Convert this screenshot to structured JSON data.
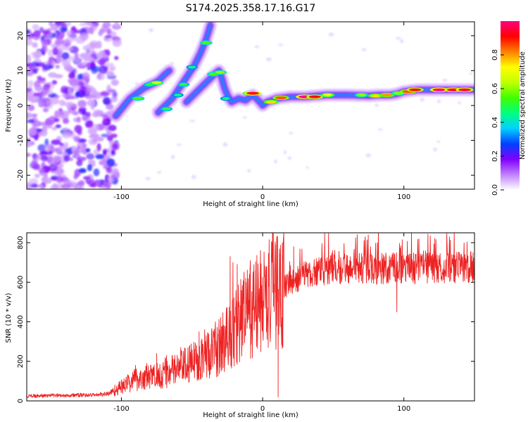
{
  "chart_data": [
    {
      "type": "heatmap",
      "title": "S174.2025.358.17.16.G17",
      "xlabel": "Height of straight line (km)",
      "ylabel": "Frequency (Hz)",
      "xlim": [
        -167,
        150
      ],
      "ylim": [
        -24,
        24
      ],
      "xticks": [
        -100,
        0,
        100
      ],
      "yticks": [
        -20,
        -10,
        0,
        10,
        20
      ],
      "colorbar": {
        "label": "Normalized spectral amplitude",
        "range": [
          0,
          1
        ],
        "ticks": [
          0.0,
          0.2,
          0.4,
          0.6,
          0.8
        ],
        "tick_labels": [
          "0.0",
          "0.2",
          "0.4",
          "0.6",
          "0.8"
        ],
        "colors": [
          "#ffffff",
          "#c080ff",
          "#8000ff",
          "#0040ff",
          "#00d0ff",
          "#00ff80",
          "#40ff00",
          "#c0ff00",
          "#ffff00",
          "#ff8000",
          "#ff0000",
          "#ff0080"
        ]
      },
      "noise_region": {
        "x": [
          -167,
          -103
        ],
        "y": [
          -24,
          24
        ]
      },
      "tracks": [
        {
          "name": "branch-a",
          "points": [
            [
              -104,
              -3
            ],
            [
              -98,
              0
            ],
            [
              -94,
              2
            ],
            [
              -89,
              3.5
            ],
            [
              -84,
              5
            ],
            [
              -79,
              6
            ],
            [
              -74,
              7
            ],
            [
              -69,
              9
            ],
            [
              -66,
              10
            ]
          ]
        },
        {
          "name": "branch-b",
          "points": [
            [
              -74,
              -2
            ],
            [
              -69,
              0
            ],
            [
              -64,
              2
            ],
            [
              -59,
              5
            ],
            [
              -54,
              8
            ],
            [
              -49,
              11
            ],
            [
              -44,
              15
            ],
            [
              -40,
              19
            ],
            [
              -37,
              23
            ]
          ]
        },
        {
          "name": "branch-c",
          "points": [
            [
              -54,
              1
            ],
            [
              -49,
              3
            ],
            [
              -44,
              5
            ],
            [
              -39,
              7
            ],
            [
              -34,
              9
            ],
            [
              -31,
              10
            ],
            [
              -29,
              8
            ],
            [
              -27,
              5
            ],
            [
              -25,
              3
            ],
            [
              -22,
              1
            ],
            [
              -17,
              2
            ],
            [
              -12,
              1.5
            ],
            [
              -7,
              3
            ],
            [
              -2,
              1
            ],
            [
              0,
              0
            ],
            [
              3,
              1
            ],
            [
              10,
              2
            ],
            [
              20,
              2.5
            ],
            [
              30,
              2.5
            ],
            [
              45,
              3
            ],
            [
              60,
              3
            ],
            [
              75,
              2.8
            ],
            [
              82,
              3
            ],
            [
              90,
              3
            ],
            [
              95,
              3.3
            ],
            [
              100,
              4
            ],
            [
              110,
              4.5
            ],
            [
              120,
              4.5
            ],
            [
              130,
              4.5
            ],
            [
              150,
              4.5
            ]
          ]
        }
      ],
      "hotspots": [
        {
          "x": -88,
          "y": 2,
          "v": 0.55
        },
        {
          "x": -80,
          "y": 6,
          "v": 0.5
        },
        {
          "x": -75,
          "y": 6.5,
          "v": 0.65
        },
        {
          "x": -68,
          "y": -1,
          "v": 0.5
        },
        {
          "x": -60,
          "y": 3,
          "v": 0.45
        },
        {
          "x": -56,
          "y": 6,
          "v": 0.5
        },
        {
          "x": -50,
          "y": 11,
          "v": 0.45
        },
        {
          "x": -40,
          "y": 18,
          "v": 0.55
        },
        {
          "x": -35,
          "y": 9,
          "v": 0.55
        },
        {
          "x": -30,
          "y": 9.5,
          "v": 0.6
        },
        {
          "x": -26,
          "y": 2,
          "v": 0.45
        },
        {
          "x": -9,
          "y": 3.5,
          "v": 0.7
        },
        {
          "x": -7,
          "y": 3.5,
          "v": 0.95
        },
        {
          "x": 6,
          "y": 1,
          "v": 0.75
        },
        {
          "x": 13,
          "y": 2.2,
          "v": 0.85
        },
        {
          "x": 30,
          "y": 2.5,
          "v": 1.0
        },
        {
          "x": 37,
          "y": 2.5,
          "v": 0.9
        },
        {
          "x": 46,
          "y": 3,
          "v": 0.7
        },
        {
          "x": 70,
          "y": 3,
          "v": 0.6
        },
        {
          "x": 80,
          "y": 2.8,
          "v": 0.75
        },
        {
          "x": 88,
          "y": 3,
          "v": 0.8
        },
        {
          "x": 96,
          "y": 3.5,
          "v": 0.6
        },
        {
          "x": 103,
          "y": 4,
          "v": 0.85
        },
        {
          "x": 108,
          "y": 4.5,
          "v": 0.9
        },
        {
          "x": 125,
          "y": 4.5,
          "v": 1.0
        },
        {
          "x": 135,
          "y": 4.5,
          "v": 0.95
        },
        {
          "x": 143,
          "y": 4.5,
          "v": 0.95
        }
      ]
    },
    {
      "type": "line",
      "xlabel": "Height of straight line (km)",
      "ylabel": "SNR (10 * v/v)",
      "xlim": [
        -167,
        150
      ],
      "ylim": [
        0,
        850
      ],
      "xticks": [
        -100,
        0,
        100
      ],
      "yticks": [
        0,
        200,
        400,
        600,
        800
      ],
      "color": "#ee2222",
      "envelope": [
        [
          -167,
          25
        ],
        [
          -140,
          28
        ],
        [
          -120,
          30
        ],
        [
          -110,
          35
        ],
        [
          -100,
          70
        ],
        [
          -90,
          110
        ],
        [
          -80,
          120
        ],
        [
          -70,
          140
        ],
        [
          -60,
          160
        ],
        [
          -50,
          190
        ],
        [
          -45,
          220
        ],
        [
          -40,
          240
        ],
        [
          -35,
          250
        ],
        [
          -30,
          280
        ],
        [
          -25,
          320
        ],
        [
          -20,
          360
        ],
        [
          -15,
          420
        ],
        [
          -10,
          450
        ],
        [
          -5,
          480
        ],
        [
          0,
          510
        ],
        [
          5,
          540
        ],
        [
          10,
          560
        ],
        [
          20,
          600
        ],
        [
          30,
          630
        ],
        [
          40,
          650
        ],
        [
          50,
          660
        ],
        [
          60,
          668
        ],
        [
          80,
          668
        ],
        [
          100,
          670
        ],
        [
          130,
          672
        ],
        [
          150,
          675
        ]
      ],
      "spikes": [
        [
          -90,
          180
        ],
        [
          -82,
          190
        ],
        [
          -75,
          240
        ],
        [
          -68,
          230
        ],
        [
          -58,
          270
        ],
        [
          -45,
          350
        ],
        [
          -40,
          330
        ],
        [
          -23,
          730
        ],
        [
          -21,
          700
        ],
        [
          -18,
          690
        ],
        [
          -12,
          620
        ],
        [
          -5,
          660
        ],
        [
          7,
          850
        ],
        [
          9,
          550
        ],
        [
          11,
          20
        ],
        [
          10,
          830
        ],
        [
          14,
          800
        ],
        [
          22,
          780
        ],
        [
          95,
          450
        ]
      ]
    }
  ]
}
